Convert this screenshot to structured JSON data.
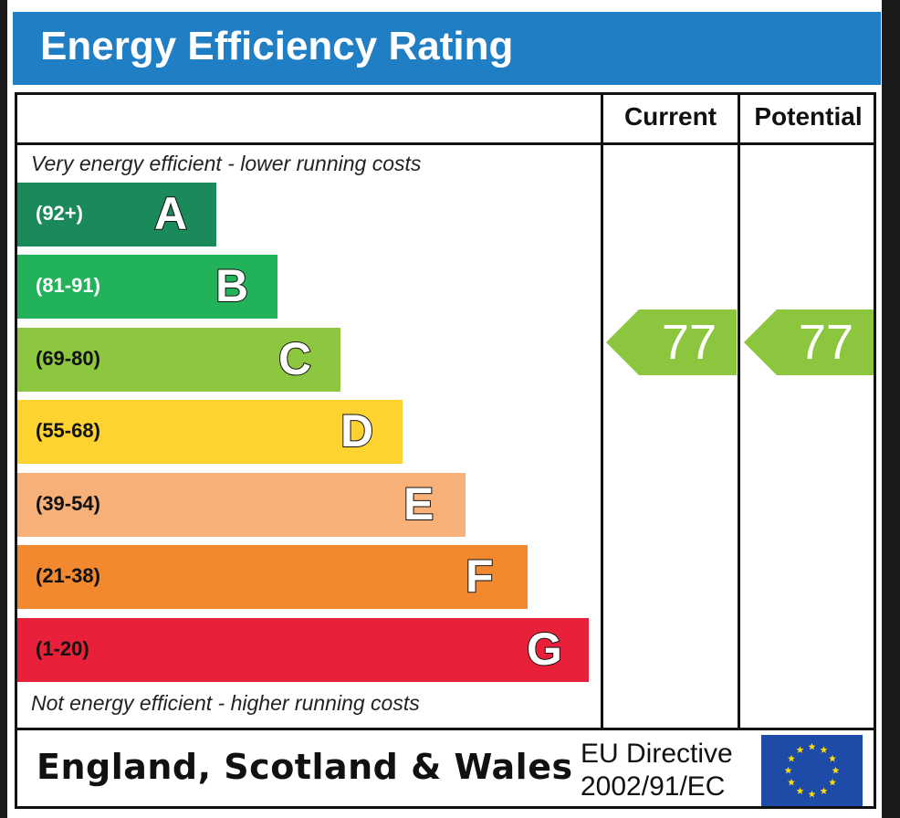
{
  "title": "Energy Efficiency Rating",
  "columns": {
    "current": "Current",
    "potential": "Potential"
  },
  "captions": {
    "top": "Very energy efficient - lower running costs",
    "bottom": "Not energy efficient - higher running costs"
  },
  "footer": {
    "region": "England, Scotland & Wales",
    "directive_line1": "EU Directive",
    "directive_line2": "2002/91/EC"
  },
  "colors": {
    "title_bar": "#1f7ec4",
    "indicator": "#8cc63f",
    "eu_flag": "#1e4aa8",
    "eu_stars": "#ffdd00"
  },
  "chart_data": {
    "type": "bar",
    "title": "Energy Efficiency Rating",
    "categories": [
      "A",
      "B",
      "C",
      "D",
      "E",
      "F",
      "G"
    ],
    "bands": [
      {
        "letter": "A",
        "range": "(92+)",
        "color": "#1a8a5a",
        "range_text_color": "#ffffff"
      },
      {
        "letter": "B",
        "range": "(81-91)",
        "color": "#22b35a",
        "range_text_color": "#ffffff"
      },
      {
        "letter": "C",
        "range": "(69-80)",
        "color": "#8dc63f",
        "range_text_color": "#111111"
      },
      {
        "letter": "D",
        "range": "(55-68)",
        "color": "#fed22f",
        "range_text_color": "#111111"
      },
      {
        "letter": "E",
        "range": "(39-54)",
        "color": "#f7b078",
        "range_text_color": "#111111"
      },
      {
        "letter": "F",
        "range": "(21-38)",
        "color": "#f3892f",
        "range_text_color": "#111111"
      },
      {
        "letter": "G",
        "range": "(1-20)",
        "color": "#e8203a",
        "range_text_color": "#111111"
      }
    ],
    "current": "77",
    "potential": "77",
    "current_band": "C",
    "potential_band": "C"
  }
}
